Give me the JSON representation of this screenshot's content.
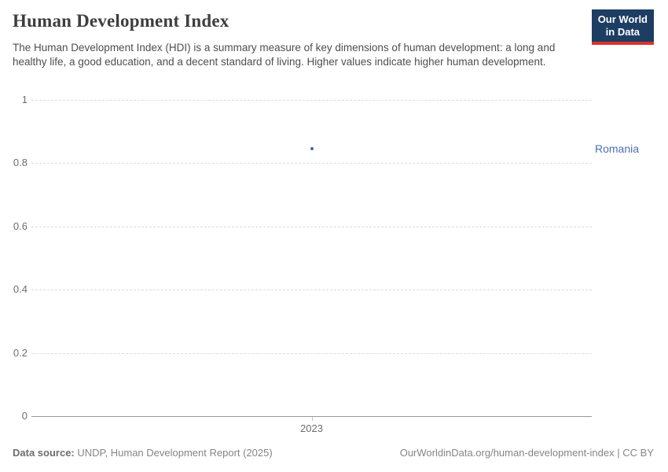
{
  "header": {
    "title": "Human Development Index",
    "subtitle": "The Human Development Index (HDI) is a summary measure of key dimensions of human development: a long and healthy life, a good education, and a decent standard of living. Higher values indicate higher human development.",
    "logo": {
      "line1": "Our World",
      "line2": "in Data"
    }
  },
  "chart_data": {
    "type": "scatter",
    "title": "Human Development Index",
    "xticks": [
      "2023"
    ],
    "yticks": [
      "1",
      "0.8",
      "0.6",
      "0.4",
      "0.2",
      "0"
    ],
    "ylim": [
      0,
      1
    ],
    "grid": "horizontal-dashed",
    "legend_position": "right-of-point",
    "series": [
      {
        "name": "Romania",
        "x": [
          2023
        ],
        "values": [
          0.845
        ],
        "color": "#4466aa",
        "label_color": "#4d6fae"
      }
    ]
  },
  "colors": {
    "logo_bg": "#1d3d63",
    "logo_accent": "#d9342b",
    "accent_blue": "#4466aa"
  },
  "footer": {
    "source_label": "Data source:",
    "source_text": "UNDP, Human Development Report (2025)",
    "credit_link": "OurWorldinData.org/human-development-index",
    "credit_separator": "|",
    "license": "CC BY"
  }
}
